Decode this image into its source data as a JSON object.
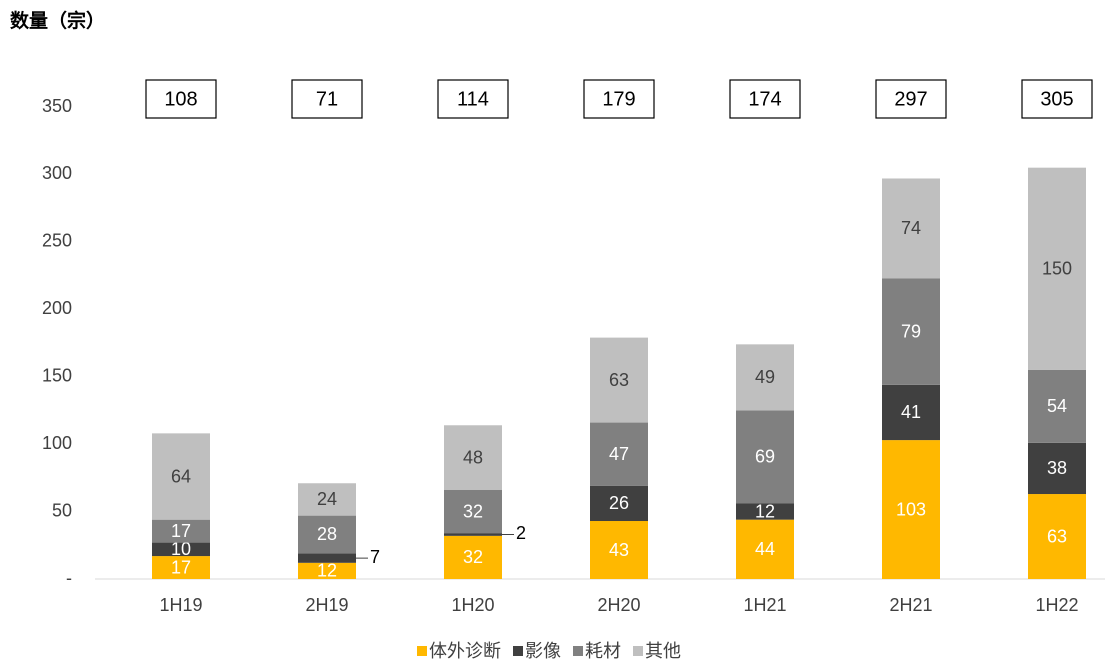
{
  "chart_data": {
    "type": "stacked_bar",
    "title": "数量（宗）",
    "categories": [
      "1H19",
      "2H19",
      "1H20",
      "2H20",
      "1H21",
      "2H21",
      "1H22"
    ],
    "series": [
      {
        "name": "体外诊断",
        "color": "#FFB800",
        "values": [
          17,
          12,
          32,
          43,
          44,
          103,
          63
        ]
      },
      {
        "name": "影像",
        "color": "#404040",
        "values": [
          10,
          7,
          2,
          26,
          12,
          41,
          38
        ]
      },
      {
        "name": "耗材",
        "color": "#808080",
        "values": [
          17,
          28,
          32,
          47,
          69,
          79,
          54
        ]
      },
      {
        "name": "其他",
        "color": "#BFBFBF",
        "values": [
          64,
          24,
          48,
          63,
          49,
          74,
          150
        ]
      }
    ],
    "totals": [
      108,
      71,
      114,
      179,
      174,
      297,
      305
    ],
    "ylim": [
      0,
      350
    ],
    "yticks": [
      {
        "value": 0,
        "label": "-"
      },
      50,
      100,
      150,
      200,
      250,
      300,
      350
    ],
    "legend": "bottom"
  }
}
